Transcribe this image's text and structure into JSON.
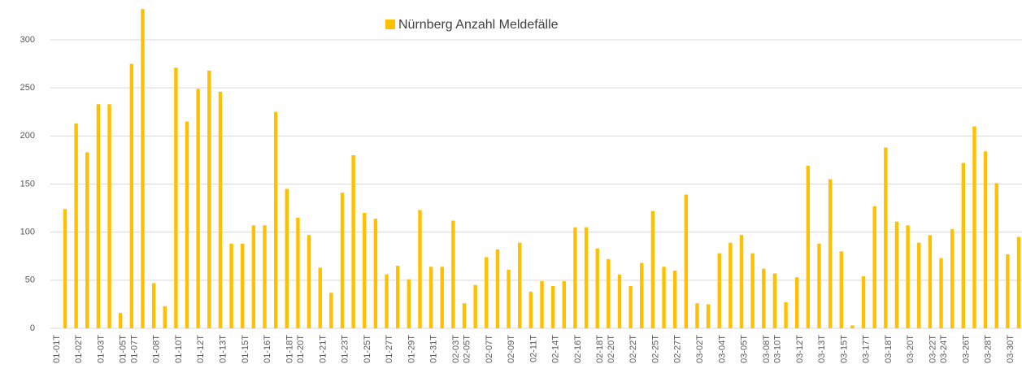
{
  "chart_data": {
    "type": "bar",
    "series": [
      {
        "name": "Nürnberg Anzahl Meldefälle",
        "color": "#ffc000",
        "values": [
          124,
          213,
          183,
          233,
          233,
          16,
          275,
          332,
          47,
          23,
          271,
          215,
          249,
          268,
          246,
          88,
          88,
          107,
          107,
          225,
          145,
          115,
          97,
          63,
          37,
          141,
          180,
          120,
          114,
          56,
          65,
          51,
          123,
          64,
          64,
          112,
          26,
          45,
          74,
          82,
          61,
          89,
          38,
          49,
          44,
          49,
          105,
          105,
          83,
          72,
          56,
          44,
          68,
          122,
          64,
          60,
          139,
          26,
          25,
          78,
          89,
          97,
          78,
          62,
          57,
          27,
          53,
          169,
          88,
          155,
          80,
          3,
          54,
          127,
          188,
          111,
          107,
          89,
          97,
          73,
          103,
          172,
          210,
          184,
          151,
          77,
          95
        ]
      }
    ],
    "categories": [
      "01-01T",
      null,
      "01-02T",
      null,
      "01-03T",
      null,
      "01-05T",
      "01-07T",
      null,
      "01-08T",
      null,
      "01-10T",
      null,
      "01-12T",
      null,
      "01-13T",
      null,
      "01-15T",
      null,
      "01-16T",
      null,
      "01-18T",
      "01-20T",
      null,
      "01-21T",
      null,
      "01-23T",
      null,
      "01-25T",
      null,
      "01-27T",
      null,
      "01-29T",
      null,
      "01-31T",
      null,
      "02-03T",
      "02-05T",
      null,
      "02-07T",
      null,
      "02-09T",
      null,
      "02-11T",
      null,
      "02-14T",
      null,
      "02-16T",
      null,
      "02-18T",
      "02-20T",
      null,
      "02-22T",
      null,
      "02-25T",
      null,
      "02-27T",
      null,
      "03-02T",
      null,
      "03-04T",
      null,
      "03-05T",
      null,
      "03-08T",
      "03-10T",
      null,
      "03-12T",
      null,
      "03-13T",
      null,
      "03-15T",
      null,
      "03-17T",
      null,
      "03-18T",
      null,
      "03-20T",
      null,
      "03-22T",
      "03-24T",
      null,
      "03-26T",
      null,
      "03-28T",
      null,
      "03-30T"
    ],
    "ylim": [
      0,
      350
    ],
    "yticks": [
      0,
      50,
      100,
      150,
      200,
      250,
      300
    ],
    "grid": true,
    "legend": "top"
  }
}
